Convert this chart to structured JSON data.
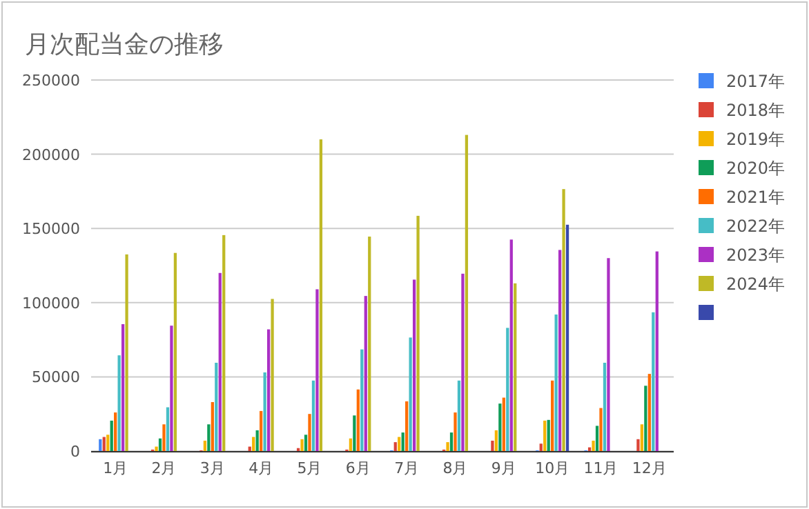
{
  "chart_data": {
    "type": "bar",
    "title": "月次配当金の推移",
    "categories": [
      "1月",
      "2月",
      "3月",
      "4月",
      "5月",
      "6月",
      "7月",
      "8月",
      "9月",
      "10月",
      "11月",
      "12月"
    ],
    "ylim": [
      0,
      250000
    ],
    "yticks": [
      0,
      50000,
      100000,
      150000,
      200000,
      250000
    ],
    "grid": "y",
    "legend": "right",
    "series": [
      {
        "name": "2017年",
        "color": "#4285f4",
        "values": [
          8000,
          null,
          null,
          null,
          null,
          null,
          500,
          null,
          null,
          500,
          500,
          null
        ]
      },
      {
        "name": "2018年",
        "color": "#db4437",
        "values": [
          9500,
          1000,
          500,
          3000,
          2000,
          1000,
          6000,
          1000,
          7000,
          5000,
          2500,
          8000
        ]
      },
      {
        "name": "2019年",
        "color": "#f4b400",
        "values": [
          11000,
          3000,
          7000,
          9500,
          8000,
          8500,
          9500,
          6000,
          14000,
          20500,
          7000,
          18000
        ]
      },
      {
        "name": "2020年",
        "color": "#0f9d58",
        "values": [
          20500,
          8500,
          18000,
          14000,
          11000,
          24000,
          12500,
          12500,
          32000,
          21000,
          17000,
          44000
        ]
      },
      {
        "name": "2021年",
        "color": "#ff6d01",
        "values": [
          26000,
          18000,
          33000,
          27000,
          25000,
          41500,
          33500,
          26000,
          36000,
          47500,
          29000,
          52000
        ]
      },
      {
        "name": "2022年",
        "color": "#46bdc6",
        "values": [
          64500,
          29500,
          59500,
          53000,
          47500,
          68500,
          76500,
          47500,
          83000,
          92000,
          59500,
          93500
        ]
      },
      {
        "name": "2023年",
        "color": "#ab30c4",
        "values": [
          85500,
          84500,
          120000,
          82000,
          109000,
          104500,
          115500,
          119500,
          142500,
          135500,
          130000,
          134500
        ]
      },
      {
        "name": "2024年",
        "color": "#bfb926",
        "values": [
          132500,
          133500,
          145500,
          102500,
          210000,
          144500,
          158500,
          213000,
          113000,
          176500,
          null,
          null
        ]
      },
      {
        "color": "#3949ab",
        "values": [
          null,
          null,
          null,
          null,
          null,
          null,
          null,
          null,
          null,
          152500,
          null,
          null
        ]
      }
    ]
  }
}
